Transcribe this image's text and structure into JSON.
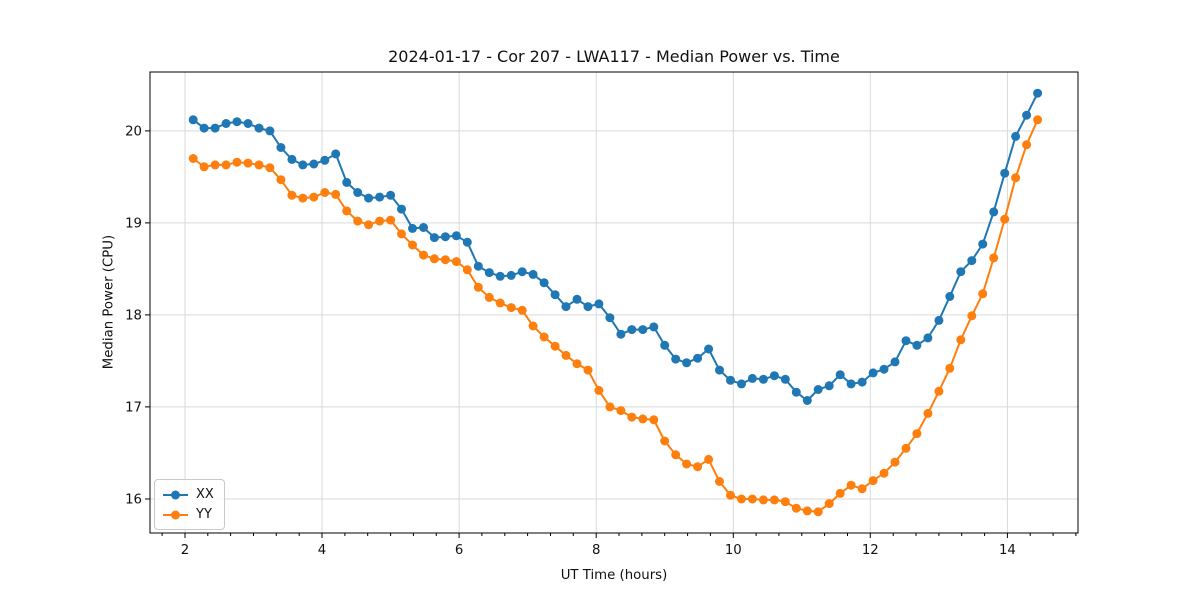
{
  "figure": {
    "background": "#ffffff",
    "axis_color": "#000000"
  },
  "chart_data": {
    "type": "line",
    "title": "2024-01-17 - Cor 207 - LWA117 - Median Power vs. Time",
    "xlabel": "UT Time (hours)",
    "ylabel": "Median Power (CPU)",
    "xlim": [
      1.49,
      15.03
    ],
    "ylim": [
      15.63,
      20.64
    ],
    "x_ticks": [
      2,
      4,
      6,
      8,
      10,
      12,
      14
    ],
    "y_ticks": [
      16,
      17,
      18,
      19,
      20
    ],
    "x_minor_step": 0.33333,
    "grid": true,
    "grid_color": "#d9d9d9",
    "marker": "circle",
    "marker_size": 9,
    "line_width": 2,
    "legend": {
      "position": "lower left",
      "entries": [
        "XX",
        "YY"
      ]
    },
    "x": [
      2.12,
      2.28,
      2.44,
      2.6,
      2.76,
      2.92,
      3.08,
      3.24,
      3.4,
      3.56,
      3.72,
      3.88,
      4.04,
      4.2,
      4.36,
      4.52,
      4.68,
      4.84,
      5.0,
      5.16,
      5.32,
      5.48,
      5.64,
      5.8,
      5.96,
      6.12,
      6.28,
      6.44,
      6.6,
      6.76,
      6.92,
      7.08,
      7.24,
      7.4,
      7.56,
      7.72,
      7.88,
      8.04,
      8.2,
      8.36,
      8.52,
      8.68,
      8.84,
      9.0,
      9.16,
      9.32,
      9.48,
      9.64,
      9.8,
      9.96,
      10.12,
      10.28,
      10.44,
      10.6,
      10.76,
      10.92,
      11.08,
      11.24,
      11.4,
      11.56,
      11.72,
      11.88,
      12.04,
      12.2,
      12.36,
      12.52,
      12.68,
      12.84,
      13.0,
      13.16,
      13.32,
      13.48,
      13.64,
      13.8,
      13.96,
      14.12,
      14.28,
      14.44
    ],
    "series": [
      {
        "name": "XX",
        "color": "#1f77b4",
        "values": [
          20.12,
          20.03,
          20.03,
          20.08,
          20.1,
          20.08,
          20.03,
          20.0,
          19.82,
          19.69,
          19.63,
          19.64,
          19.68,
          19.75,
          19.44,
          19.33,
          19.27,
          19.28,
          19.3,
          19.15,
          18.94,
          18.95,
          18.84,
          18.85,
          18.86,
          18.79,
          18.53,
          18.46,
          18.42,
          18.43,
          18.47,
          18.44,
          18.35,
          18.22,
          18.09,
          18.17,
          18.09,
          18.12,
          17.97,
          17.79,
          17.84,
          17.84,
          17.87,
          17.67,
          17.52,
          17.48,
          17.53,
          17.63,
          17.4,
          17.29,
          17.25,
          17.31,
          17.3,
          17.34,
          17.3,
          17.16,
          17.07,
          17.19,
          17.23,
          17.35,
          17.25,
          17.27,
          17.37,
          17.41,
          17.49,
          17.72,
          17.67,
          17.75,
          17.94,
          18.2,
          18.47,
          18.59,
          18.77,
          19.12,
          19.54,
          19.94,
          20.17,
          20.41
        ]
      },
      {
        "name": "YY",
        "color": "#ff7f0e",
        "values": [
          19.7,
          19.61,
          19.63,
          19.63,
          19.66,
          19.65,
          19.63,
          19.6,
          19.47,
          19.3,
          19.27,
          19.28,
          19.33,
          19.31,
          19.13,
          19.02,
          18.98,
          19.02,
          19.03,
          18.88,
          18.76,
          18.65,
          18.61,
          18.6,
          18.58,
          18.49,
          18.3,
          18.19,
          18.13,
          18.08,
          18.05,
          17.88,
          17.76,
          17.66,
          17.56,
          17.47,
          17.4,
          17.18,
          17.0,
          16.96,
          16.89,
          16.87,
          16.86,
          16.63,
          16.48,
          16.38,
          16.35,
          16.43,
          16.19,
          16.04,
          16.0,
          16.0,
          15.99,
          15.99,
          15.97,
          15.9,
          15.87,
          15.86,
          15.95,
          16.06,
          16.15,
          16.11,
          16.2,
          16.28,
          16.4,
          16.55,
          16.71,
          16.93,
          17.17,
          17.42,
          17.73,
          17.99,
          18.23,
          18.62,
          19.04,
          19.49,
          19.85,
          20.12
        ]
      }
    ]
  }
}
